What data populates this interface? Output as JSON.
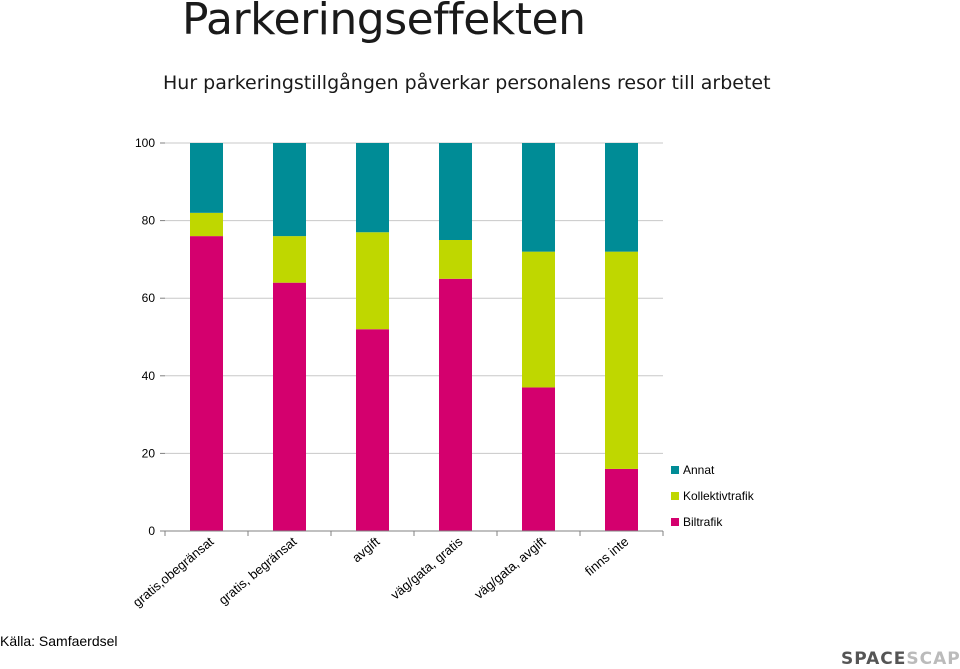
{
  "title": "Parkeringseffekten",
  "subtitle": "Hur parkeringstillgången påverkar personalens resor till arbetet",
  "source": "Källa: Samfaerdsel",
  "logo": {
    "part1": "SPACE",
    "part2": "SCAPE"
  },
  "colors": {
    "Biltrafik": "#d4006e",
    "Kollektivtrafik": "#bfd700",
    "Annat": "#008c96"
  },
  "chart_data": {
    "type": "bar",
    "stacked": true,
    "categories": [
      "gratis,obegränsat",
      "gratis, begränsat",
      "avgift",
      "väg/gata, gratis",
      "väg/gata, avgift",
      "finns inte"
    ],
    "series": [
      {
        "name": "Biltrafik",
        "values": [
          76,
          64,
          52,
          65,
          37,
          16
        ]
      },
      {
        "name": "Kollektivtrafik",
        "values": [
          6,
          12,
          25,
          10,
          35,
          56
        ]
      },
      {
        "name": "Annat",
        "values": [
          18,
          24,
          23,
          25,
          28,
          28
        ]
      }
    ],
    "ylim": [
      0,
      100
    ],
    "yticks": [
      0,
      20,
      40,
      60,
      80,
      100
    ],
    "legend": [
      "Annat",
      "Kollektivtrafik",
      "Biltrafik"
    ],
    "legend_position": "right",
    "grid": "horizontal",
    "xlabel": "",
    "ylabel": ""
  }
}
